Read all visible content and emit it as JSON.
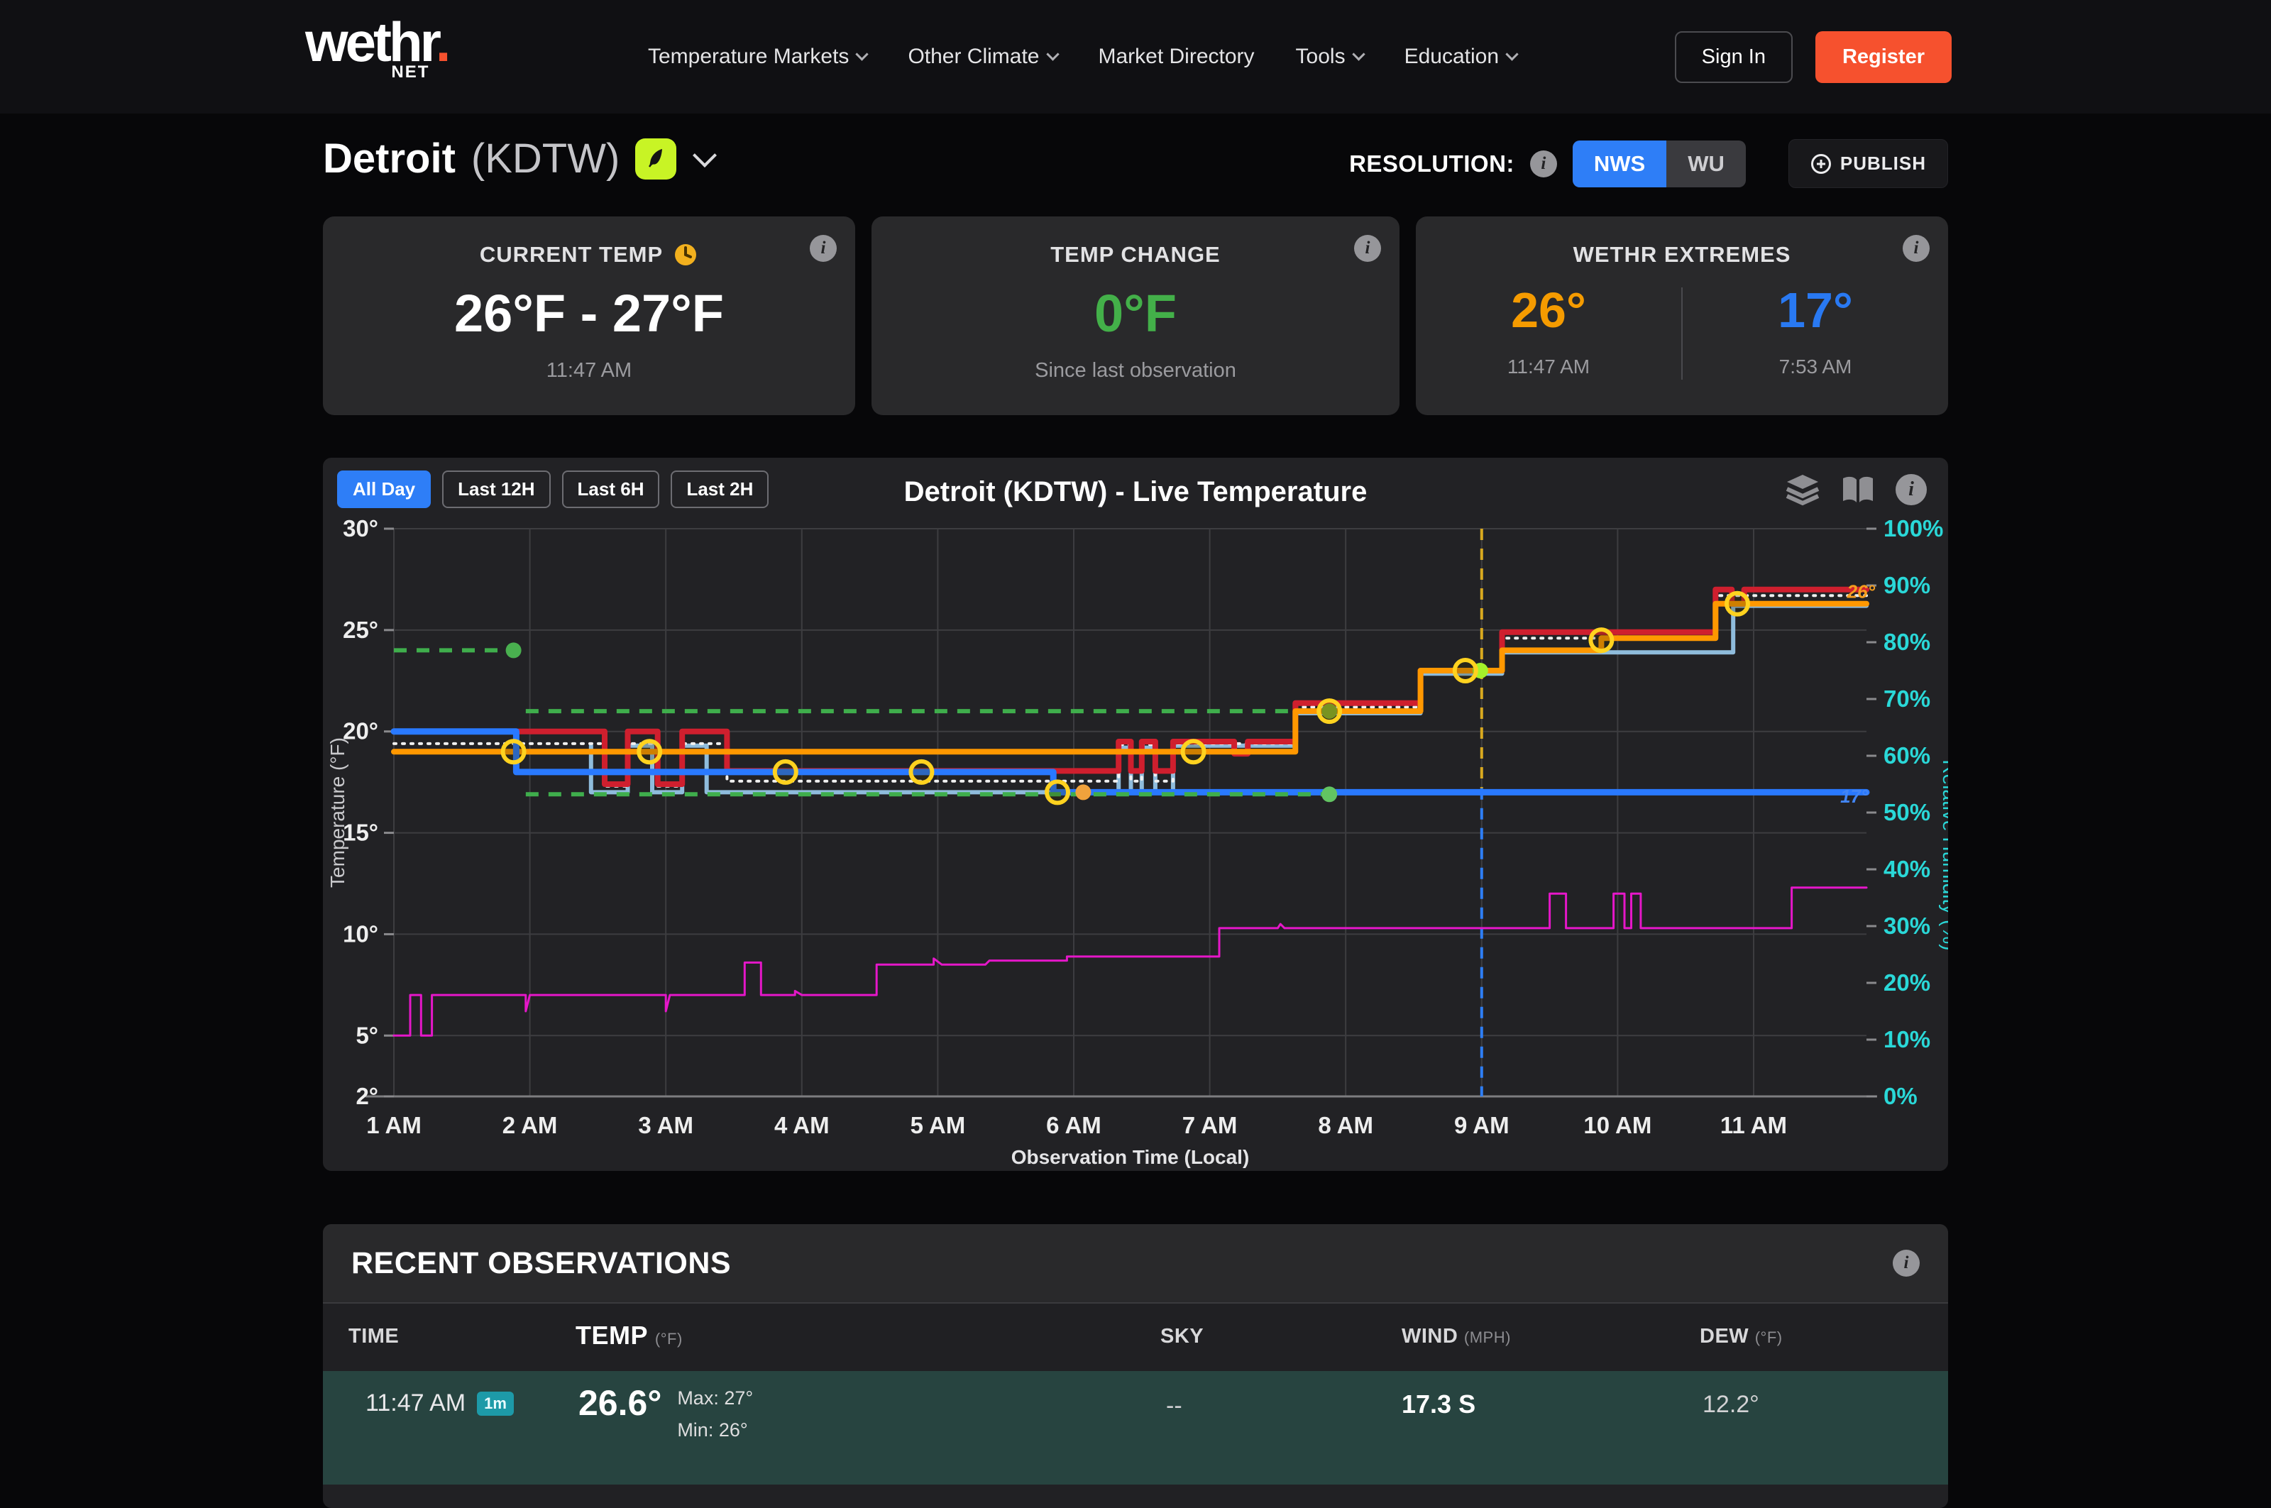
{
  "nav": {
    "logo": "wethr",
    "logo_dot": ".",
    "logo_suffix": "NET",
    "items": [
      {
        "label": "Temperature Markets",
        "has_dropdown": true
      },
      {
        "label": "Other Climate",
        "has_dropdown": true
      },
      {
        "label": "Market Directory",
        "has_dropdown": false
      },
      {
        "label": "Tools",
        "has_dropdown": true
      },
      {
        "label": "Education",
        "has_dropdown": true
      }
    ],
    "sign_in": "Sign In",
    "register": "Register"
  },
  "header": {
    "station_name": "Detroit",
    "station_code": "(KDTW)",
    "resolution_label": "RESOLUTION:",
    "toggle_options": [
      "NWS",
      "WU"
    ],
    "active_resolution": "NWS",
    "publish_label": "PUBLISH"
  },
  "icons": {
    "info": "i",
    "publish_plus": "circle-plus",
    "clock": "clock",
    "layers": "layers",
    "book": "open-book",
    "feather": "feather",
    "chevron": "chevron-down"
  },
  "cards": {
    "current": {
      "title": "CURRENT TEMP",
      "value": "26°F - 27°F",
      "time": "11:47 AM"
    },
    "change": {
      "title": "TEMP CHANGE",
      "value": "0°F",
      "subtitle": "Since last observation",
      "color": "#43b049"
    },
    "extremes": {
      "title": "WETHR EXTREMES",
      "high": "26°",
      "high_time": "11:47 AM",
      "high_color": "#f59b00",
      "low": "17°",
      "low_time": "7:53 AM",
      "low_color": "#2979f2"
    }
  },
  "chart": {
    "ranges": [
      "All Day",
      "Last 12H",
      "Last 6H",
      "Last 2H"
    ],
    "active_range": "All Day",
    "title": "Detroit (KDTW) - Live Temperature"
  },
  "chart_data": {
    "type": "line",
    "title": "Detroit (KDTW) - Live Temperature",
    "xlabel": "Observation Time (Local)",
    "ylabel_left": "Temperature (°F)",
    "ylabel_right": "Relative Humidity (%)",
    "x_unit_note": "x = local clock hour, 1 = 1 AM, 11.83 = 11:47 AM",
    "xlim": [
      1,
      11.83
    ],
    "ylim_left": [
      2,
      30
    ],
    "ylim_right": [
      0,
      100
    ],
    "grid": true,
    "x_ticks": [
      {
        "h": 1,
        "label": "1 AM"
      },
      {
        "h": 2,
        "label": "2 AM"
      },
      {
        "h": 3,
        "label": "3 AM"
      },
      {
        "h": 4,
        "label": "4 AM"
      },
      {
        "h": 5,
        "label": "5 AM"
      },
      {
        "h": 6,
        "label": "6 AM"
      },
      {
        "h": 7,
        "label": "7 AM"
      },
      {
        "h": 8,
        "label": "8 AM"
      },
      {
        "h": 9,
        "label": "9 AM"
      },
      {
        "h": 10,
        "label": "10 AM"
      },
      {
        "h": 11,
        "label": "11 AM"
      }
    ],
    "y_ticks_left": [
      {
        "t": 30,
        "label": "30°"
      },
      {
        "t": 25,
        "label": "25°"
      },
      {
        "t": 20,
        "label": "20°"
      },
      {
        "t": 15,
        "label": "15°"
      },
      {
        "t": 10,
        "label": "10°"
      },
      {
        "t": 5,
        "label": "5°"
      },
      {
        "t": 2,
        "label": "2°"
      }
    ],
    "y_ticks_right": [
      {
        "p": 100,
        "label": "100%"
      },
      {
        "p": 90,
        "label": "90%"
      },
      {
        "p": 80,
        "label": "80%"
      },
      {
        "p": 70,
        "label": "70%"
      },
      {
        "p": 60,
        "label": "60%"
      },
      {
        "p": 50,
        "label": "50%"
      },
      {
        "p": 40,
        "label": "40%"
      },
      {
        "p": 30,
        "label": "30%"
      },
      {
        "p": 20,
        "label": "20%"
      },
      {
        "p": 10,
        "label": "10%"
      },
      {
        "p": 0,
        "label": "0%"
      }
    ],
    "series": [
      {
        "name": "secondary-temp",
        "color": "#8fbcdc",
        "width": 6,
        "points": [
          [
            2.45,
            19.3
          ],
          [
            2.45,
            17
          ],
          [
            2.72,
            17
          ],
          [
            2.72,
            19.3
          ],
          [
            2.9,
            19.3
          ],
          [
            2.9,
            17
          ],
          [
            3.12,
            17
          ],
          [
            3.12,
            19.3
          ],
          [
            3.3,
            19.3
          ],
          [
            3.3,
            17
          ],
          [
            6.33,
            17
          ],
          [
            6.33,
            19.2
          ],
          [
            6.42,
            19.2
          ],
          [
            6.42,
            17
          ],
          [
            6.5,
            17
          ],
          [
            6.5,
            19.2
          ],
          [
            6.6,
            19.2
          ],
          [
            6.6,
            17
          ],
          [
            6.73,
            17
          ],
          [
            6.73,
            19.3
          ],
          [
            7.63,
            19.3
          ],
          [
            7.63,
            20.9
          ],
          [
            8.55,
            20.9
          ],
          [
            8.55,
            22.85
          ],
          [
            9.15,
            22.85
          ],
          [
            9.15,
            23.9
          ],
          [
            10.85,
            23.9
          ],
          [
            10.85,
            26.2
          ],
          [
            11.83,
            26.2
          ]
        ]
      },
      {
        "name": "temp-trace-dotted",
        "color": "#f0f0f0",
        "width": 4,
        "dash": "3 9",
        "points": [
          [
            1,
            19.4
          ],
          [
            2.55,
            19.4
          ],
          [
            2.55,
            17.3
          ],
          [
            2.72,
            17.3
          ],
          [
            2.72,
            19.4
          ],
          [
            2.94,
            19.4
          ],
          [
            2.94,
            17.3
          ],
          [
            3.12,
            17.3
          ],
          [
            3.12,
            19.4
          ],
          [
            3.45,
            19.4
          ],
          [
            3.45,
            17.55
          ],
          [
            6.33,
            17.55
          ],
          [
            6.33,
            19.35
          ],
          [
            6.42,
            19.35
          ],
          [
            6.42,
            17.55
          ],
          [
            6.5,
            17.55
          ],
          [
            6.5,
            19.35
          ],
          [
            6.6,
            19.35
          ],
          [
            6.6,
            17.55
          ],
          [
            6.73,
            17.55
          ],
          [
            6.73,
            19.4
          ],
          [
            7.63,
            19.4
          ],
          [
            7.63,
            21.2
          ],
          [
            8.55,
            21.2
          ],
          [
            8.55,
            22.95
          ],
          [
            9.15,
            22.95
          ],
          [
            9.15,
            24.6
          ],
          [
            10.72,
            24.6
          ],
          [
            10.72,
            26.7
          ],
          [
            11.83,
            26.7
          ]
        ]
      },
      {
        "name": "nws-temp",
        "color": "#cf1f2e",
        "width": 8,
        "points": [
          [
            1.9,
            20
          ],
          [
            2.55,
            20
          ],
          [
            2.55,
            17.4
          ],
          [
            2.72,
            17.4
          ],
          [
            2.72,
            20
          ],
          [
            2.94,
            20
          ],
          [
            2.94,
            17.4
          ],
          [
            3.12,
            17.4
          ],
          [
            3.12,
            20
          ],
          [
            3.45,
            20
          ],
          [
            3.45,
            18.05
          ],
          [
            6.33,
            18.05
          ],
          [
            6.33,
            19.5
          ],
          [
            6.42,
            19.5
          ],
          [
            6.42,
            18.05
          ],
          [
            6.5,
            18.05
          ],
          [
            6.5,
            19.5
          ],
          [
            6.6,
            19.5
          ],
          [
            6.6,
            18.05
          ],
          [
            6.73,
            18.05
          ],
          [
            6.73,
            19.5
          ],
          [
            7.18,
            19.5
          ],
          [
            7.18,
            18.9
          ],
          [
            7.28,
            18.9
          ],
          [
            7.28,
            19.5
          ],
          [
            7.63,
            19.5
          ],
          [
            7.63,
            21.4
          ],
          [
            8.55,
            21.4
          ],
          [
            8.55,
            23
          ],
          [
            9.15,
            23
          ],
          [
            9.15,
            24.9
          ],
          [
            10.72,
            24.9
          ],
          [
            10.72,
            27
          ],
          [
            10.84,
            27
          ],
          [
            10.84,
            26.3
          ],
          [
            10.93,
            26.3
          ],
          [
            10.93,
            27
          ],
          [
            11.83,
            27
          ]
        ]
      },
      {
        "name": "wu-temp",
        "color": "#ff9800",
        "width": 8,
        "points": [
          [
            1,
            19
          ],
          [
            7.63,
            19
          ],
          [
            7.63,
            21
          ],
          [
            8.55,
            21
          ],
          [
            8.55,
            23
          ],
          [
            9.15,
            23
          ],
          [
            9.15,
            24
          ],
          [
            9.88,
            24
          ],
          [
            9.88,
            24.6
          ],
          [
            10.72,
            24.6
          ],
          [
            10.72,
            26.3
          ],
          [
            11.83,
            26.3
          ]
        ]
      },
      {
        "name": "market-low-line",
        "color": "#2979ff",
        "width": 9,
        "points": [
          [
            1,
            20
          ],
          [
            1.9,
            20
          ],
          [
            1.9,
            18
          ],
          [
            5.85,
            18
          ],
          [
            5.85,
            17
          ],
          [
            11.83,
            17
          ]
        ]
      },
      {
        "name": "dew-point",
        "color": "#e517c9",
        "width": 3,
        "points": [
          [
            1,
            5
          ],
          [
            1.12,
            5
          ],
          [
            1.12,
            7
          ],
          [
            1.2,
            7
          ],
          [
            1.2,
            5
          ],
          [
            1.28,
            5
          ],
          [
            1.28,
            7
          ],
          [
            1.97,
            7
          ],
          [
            1.97,
            6.2
          ],
          [
            2.0,
            7
          ],
          [
            3.0,
            7
          ],
          [
            3.0,
            6.2
          ],
          [
            3.03,
            7
          ],
          [
            3.58,
            7
          ],
          [
            3.58,
            8.6
          ],
          [
            3.7,
            8.6
          ],
          [
            3.7,
            7
          ],
          [
            3.95,
            7
          ],
          [
            3.95,
            7.2
          ],
          [
            4.0,
            7
          ],
          [
            4.55,
            7
          ],
          [
            4.55,
            8.5
          ],
          [
            4.97,
            8.5
          ],
          [
            4.97,
            8.8
          ],
          [
            5.03,
            8.5
          ],
          [
            5.35,
            8.5
          ],
          [
            5.38,
            8.7
          ],
          [
            5.95,
            8.7
          ],
          [
            5.95,
            8.9
          ],
          [
            7.07,
            8.9
          ],
          [
            7.07,
            10.3
          ],
          [
            7.5,
            10.3
          ],
          [
            7.52,
            10.5
          ],
          [
            7.55,
            10.3
          ],
          [
            9.5,
            10.3
          ],
          [
            9.5,
            12
          ],
          [
            9.62,
            12
          ],
          [
            9.62,
            10.3
          ],
          [
            9.97,
            10.3
          ],
          [
            9.97,
            12
          ],
          [
            10.05,
            12
          ],
          [
            10.05,
            10.3
          ],
          [
            10.1,
            10.3
          ],
          [
            10.1,
            12
          ],
          [
            10.17,
            12
          ],
          [
            10.17,
            10.3
          ],
          [
            11.28,
            10.3
          ],
          [
            11.28,
            12.3
          ],
          [
            11.83,
            12.3
          ]
        ]
      }
    ],
    "guides": [
      {
        "name": "forecast-high-early",
        "t": 24,
        "x1": 1.0,
        "x2": 1.88,
        "above": false
      },
      {
        "name": "forecast-low-early",
        "t": 19,
        "x1": 1.0,
        "x2": 1.9,
        "above": false
      },
      {
        "name": "forecast-high",
        "t": 21,
        "x1": 1.97,
        "x2": 7.88,
        "above": false
      },
      {
        "name": "forecast-low",
        "t": 16.9,
        "x1": 1.97,
        "x2": 7.88,
        "above": true
      }
    ],
    "guide_color": "#3fae4c",
    "vline": {
      "x": 9,
      "split_t": 17.2,
      "top_color": "#d9a91f",
      "bottom_color": "#2e7ef7"
    },
    "markers": {
      "observation_rings": [
        [
          1.88,
          19
        ],
        [
          2.88,
          19
        ],
        [
          3.88,
          18
        ],
        [
          4.88,
          18
        ],
        [
          5.88,
          17
        ],
        [
          6.88,
          19
        ],
        [
          7.88,
          21
        ],
        [
          8.88,
          23
        ],
        [
          9.88,
          24.5
        ],
        [
          10.88,
          26.3
        ]
      ],
      "ring_color": "#ffd21f",
      "dots": [
        {
          "x": 1.88,
          "t": 24,
          "color": "#49b04f"
        },
        {
          "x": 7.88,
          "t": 16.9,
          "color": "#62c462"
        },
        {
          "x": 7.88,
          "t": 21,
          "color": "#8db32c"
        },
        {
          "x": 8.99,
          "t": 23,
          "color": "#a4f22a"
        },
        {
          "x": 6.07,
          "t": 17,
          "color": "#f0a23c"
        }
      ]
    },
    "annotations": [
      {
        "label": "26°",
        "x": 11.83,
        "t": 26.9,
        "color": "#f59d1e"
      },
      {
        "label": "17°",
        "x": 11.78,
        "t": 16.8,
        "color": "#4285f4"
      }
    ],
    "legend_note": "no legend shown"
  },
  "observations": {
    "title": "RECENT OBSERVATIONS",
    "columns": {
      "time": {
        "label": "TIME",
        "unit": ""
      },
      "temp": {
        "label": "TEMP",
        "unit": "(°F)"
      },
      "sky": {
        "label": "SKY",
        "unit": ""
      },
      "wind": {
        "label": "WIND",
        "unit": "(MPH)"
      },
      "dew": {
        "label": "DEW",
        "unit": "(°F)"
      }
    },
    "rows": [
      {
        "time": "11:47 AM",
        "age": "1m",
        "temp": "26.6°",
        "max": "Max: 27°",
        "min": "Min: 26°",
        "sky": "--",
        "wind": "17.3 S",
        "dew": "12.2°"
      }
    ]
  }
}
